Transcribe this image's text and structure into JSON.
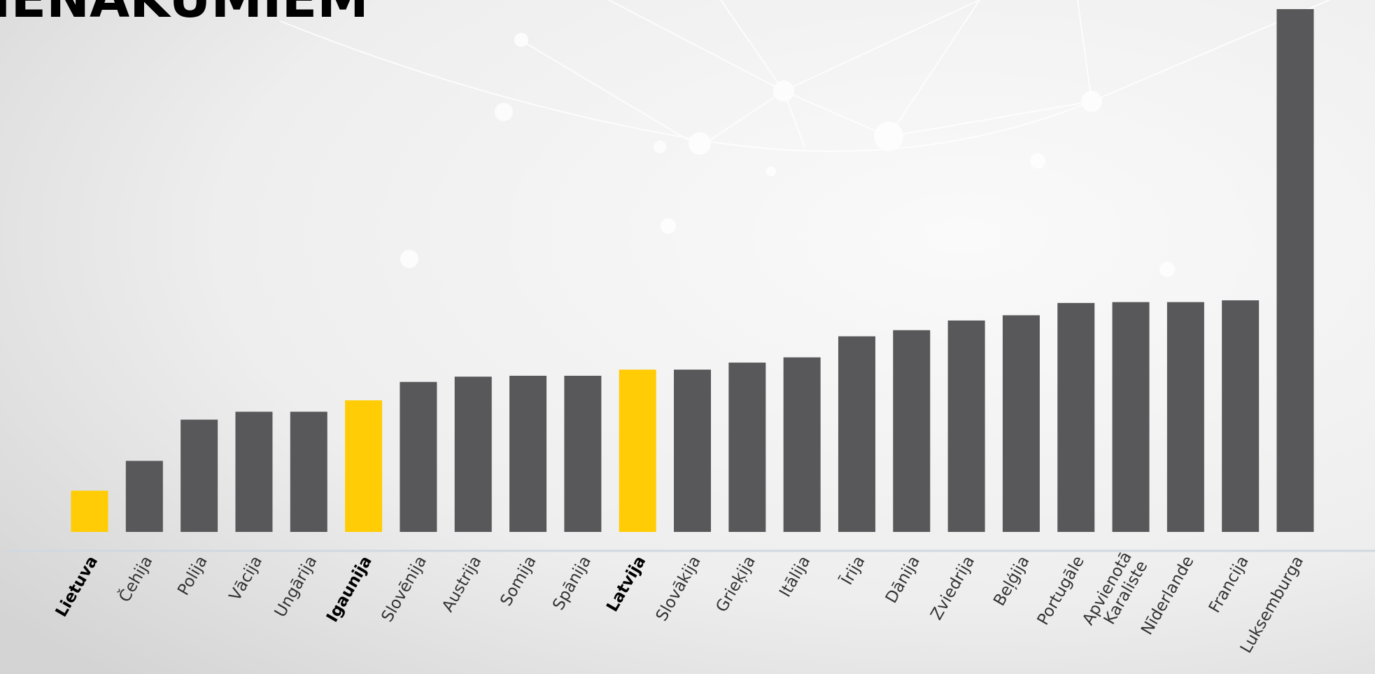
{
  "chart_data": {
    "type": "bar",
    "title": "IENĀKUMIEM",
    "categories": [
      "Lietuva",
      "Čehija",
      "Polija",
      "Vācija",
      "Ungārija",
      "Igaunija",
      "Slovēnija",
      "Austrija",
      "Somija",
      "Spānija",
      "Latvija",
      "Slovākija",
      "Grieķija",
      "Itālija",
      "Īrija",
      "Dānija",
      "Zviedrija",
      "Beļģija",
      "Portugāle",
      "Apvienotā Karaliste",
      "Nīderlande",
      "Francija",
      "Luksemburga"
    ],
    "values": [
      47,
      81,
      128,
      137,
      137,
      150,
      171,
      177,
      178,
      178,
      185,
      185,
      193,
      199,
      223,
      230,
      241,
      247,
      261,
      262,
      262,
      264,
      596
    ],
    "colors": [
      "#ffcc05",
      "#58585a",
      "#58585a",
      "#58585a",
      "#58585a",
      "#ffcc05",
      "#58585a",
      "#58585a",
      "#58585a",
      "#58585a",
      "#ffcc05",
      "#58585a",
      "#58585a",
      "#58585a",
      "#58585a",
      "#58585a",
      "#58585a",
      "#58585a",
      "#58585a",
      "#58585a",
      "#58585a",
      "#58585a",
      "#58585a"
    ],
    "highlight_color": "#ffcc05",
    "ylim": [
      0,
      600
    ]
  }
}
